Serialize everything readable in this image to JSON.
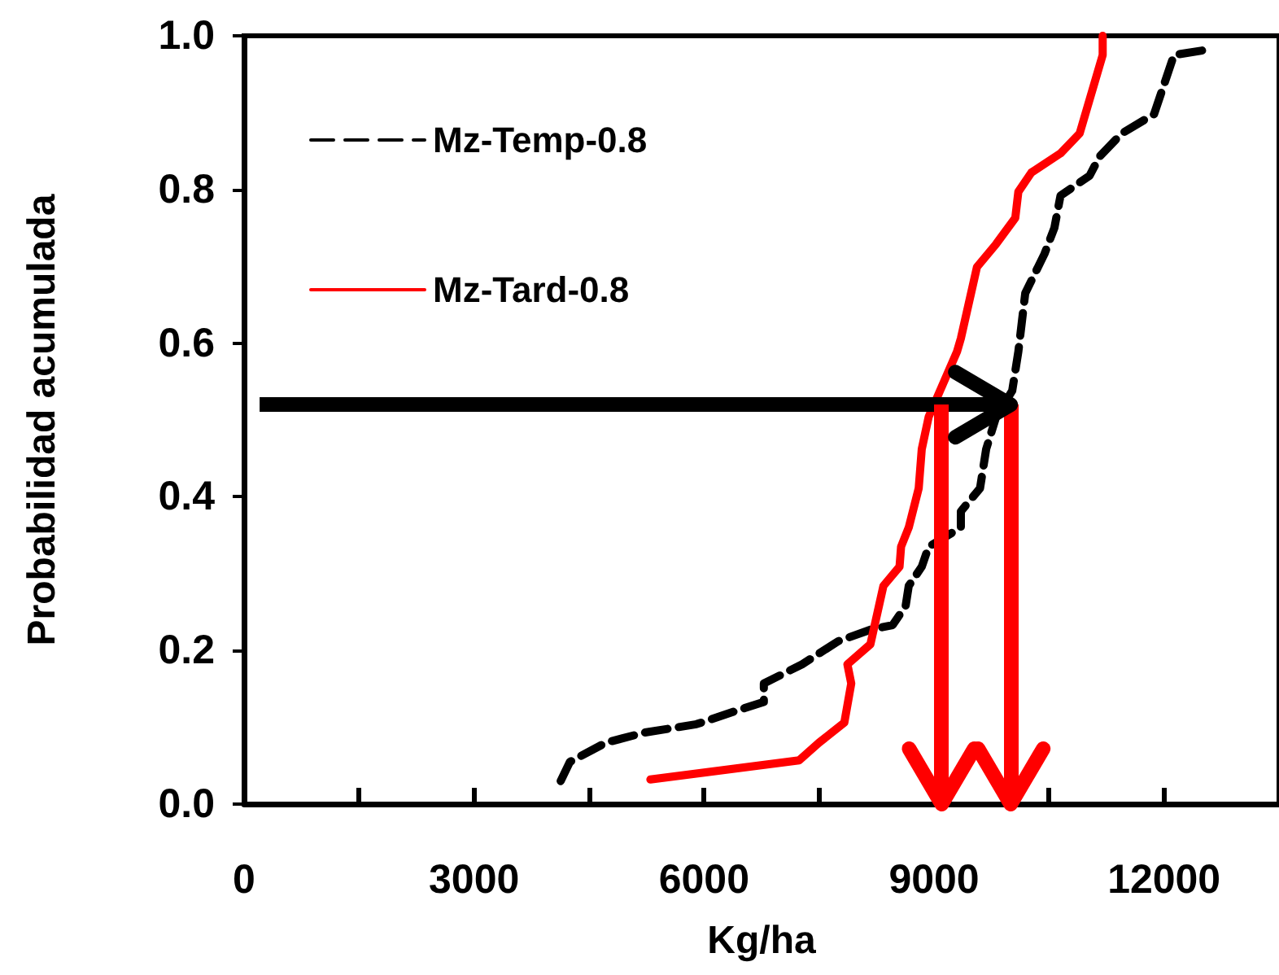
{
  "chart_data": {
    "type": "line",
    "xlabel": "Kg/ha",
    "ylabel": "Probabilidad acumulada",
    "xlim": [
      0,
      13500
    ],
    "xticks": [
      0,
      {
        "value": 1500,
        "label": null
      },
      3000,
      {
        "value": 4500,
        "label": null
      },
      6000,
      {
        "value": 7500,
        "label": null
      },
      9000,
      {
        "value": 10500,
        "label": null
      },
      12000
    ],
    "ylim": [
      0,
      1
    ],
    "yticks": [
      {
        "value": 0,
        "label": "0.0"
      },
      {
        "value": 0.2,
        "label": "0.2"
      },
      {
        "value": 0.4,
        "label": "0.4"
      },
      {
        "value": 0.6,
        "label": "0.6"
      },
      {
        "value": 0.8,
        "label": "0.8"
      },
      {
        "value": 1,
        "label": "1.0"
      }
    ],
    "grid": false,
    "legend": "top left",
    "marker": "none",
    "series": [
      {
        "name": "Mz-Temp-0.8",
        "color": "#000000",
        "line_style": "dashed",
        "x": [
          4130,
          4250,
          4720,
          5220,
          5900,
          6530,
          6780,
          6780,
          7280,
          7750,
          8170,
          8460,
          8630,
          8670,
          8840,
          8930,
          9350,
          9350,
          9600,
          9680,
          9810,
          10020,
          10100,
          10190,
          10440,
          10570,
          10650,
          11030,
          11160,
          11450,
          11870,
          12130,
          12630
        ],
        "values": [
          0.03,
          0.055,
          0.08,
          0.093,
          0.104,
          0.125,
          0.133,
          0.157,
          0.182,
          0.212,
          0.227,
          0.233,
          0.258,
          0.284,
          0.309,
          0.335,
          0.36,
          0.381,
          0.411,
          0.462,
          0.504,
          0.538,
          0.589,
          0.665,
          0.716,
          0.75,
          0.792,
          0.818,
          0.843,
          0.873,
          0.898,
          0.975,
          0.983
        ]
      },
      {
        "name": "Mz-Tard-0.8",
        "color": "#ff0000",
        "line_style": "solid",
        "x": [
          5300,
          7240,
          7500,
          7830,
          7920,
          7870,
          8170,
          8340,
          8550,
          8570,
          8670,
          8800,
          8840,
          8930,
          9300,
          9350,
          9560,
          9810,
          10060,
          10100,
          10270,
          10650,
          10900,
          11200,
          11200
        ],
        "values": [
          0.032,
          0.057,
          0.08,
          0.106,
          0.157,
          0.182,
          0.208,
          0.284,
          0.309,
          0.335,
          0.36,
          0.411,
          0.462,
          0.504,
          0.589,
          0.606,
          0.699,
          0.729,
          0.763,
          0.797,
          0.822,
          0.847,
          0.873,
          0.975,
          1.0
        ]
      }
    ],
    "ref_lines": [
      {
        "axis": "y",
        "value": 0.52,
        "color": "#000000"
      },
      {
        "axis": "x",
        "value": 9100,
        "color": "#ff0000"
      },
      {
        "axis": "x",
        "value": 10000,
        "color": "#ff0000"
      }
    ]
  }
}
